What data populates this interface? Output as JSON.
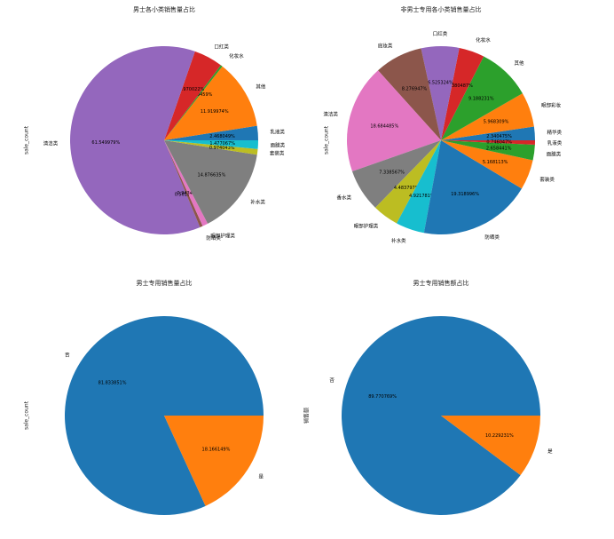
{
  "figure": {
    "background": "#ffffff"
  },
  "chart_data": [
    {
      "type": "pie",
      "title": "男士各小类销售量占比",
      "ylabel": "sale_count",
      "legend": "off",
      "percent_label_format": "6_decimal_places",
      "slices": [
        {
          "label": "乳液类",
          "value": 2.468049,
          "color": "#1f77b4"
        },
        {
          "label": "其他",
          "value": 11.919974,
          "color": "#ff7f0e"
        },
        {
          "label": "化妆水",
          "value": 0.319459,
          "color": "#2ca02c"
        },
        {
          "label": "口红类",
          "value": 4.970022,
          "color": "#d62728"
        },
        {
          "label": "清洁类",
          "value": 61.549979,
          "color": "#9467bd"
        },
        {
          "label": "防晒类",
          "value": 0.501313,
          "color": "#8c564b"
        },
        {
          "label": "眼部护理类",
          "value": 0.943459,
          "color": "#e377c2"
        },
        {
          "label": "补水类",
          "value": 14.876635,
          "color": "#7f7f7f"
        },
        {
          "label": "套装类",
          "value": 0.974043,
          "color": "#bcbd22"
        },
        {
          "label": "面膜类",
          "value": 1.477067,
          "color": "#17becf"
        }
      ]
    },
    {
      "type": "pie",
      "title": "非男士专用各小类销售量占比",
      "ylabel": "sale_count",
      "legend": "off",
      "percent_label_format": "6_decimal_places",
      "slices": [
        {
          "label": "精华类",
          "value": 2.340475,
          "color": "#1f77b4"
        },
        {
          "label": "眼部彩妆",
          "value": 5.968309,
          "color": "#ff7f0e"
        },
        {
          "label": "其他",
          "value": 9.188231,
          "color": "#2ca02c"
        },
        {
          "label": "化妆水",
          "value": 4.380487,
          "color": "#d62728"
        },
        {
          "label": "口红类",
          "value": 6.525324,
          "color": "#9467bd"
        },
        {
          "label": "底妆类",
          "value": 8.276947,
          "color": "#8c564b"
        },
        {
          "label": "清洁类",
          "value": 18.684485,
          "color": "#e377c2"
        },
        {
          "label": "香水类",
          "value": 7.338567,
          "color": "#7f7f7f"
        },
        {
          "label": "眼部护理类",
          "value": 4.483797,
          "color": "#bcbd22"
        },
        {
          "label": "补水类",
          "value": 4.921781,
          "color": "#17becf"
        },
        {
          "label": "防晒类",
          "value": 19.318996,
          "color": "#1f77b4"
        },
        {
          "label": "套装类",
          "value": 5.168113,
          "color": "#ff7f0e"
        },
        {
          "label": "面膜类",
          "value": 2.658441,
          "color": "#2ca02c"
        },
        {
          "label": "乳液类",
          "value": 0.746047,
          "color": "#d62728"
        }
      ]
    },
    {
      "type": "pie",
      "title": "男士专用销售量占比",
      "ylabel": "sale_count",
      "legend": "off",
      "percent_label_format": "6_decimal_places",
      "slices": [
        {
          "label": "否",
          "value": 81.833851,
          "color": "#1f77b4"
        },
        {
          "label": "是",
          "value": 18.166149,
          "color": "#ff7f0e"
        }
      ]
    },
    {
      "type": "pie",
      "title": "男士专用销售额占比",
      "ylabel": "销售额",
      "legend": "off",
      "percent_label_format": "6_decimal_places",
      "slices": [
        {
          "label": "否",
          "value": 89.770769,
          "color": "#1f77b4"
        },
        {
          "label": "是",
          "value": 10.229231,
          "color": "#ff7f0e"
        }
      ]
    }
  ]
}
